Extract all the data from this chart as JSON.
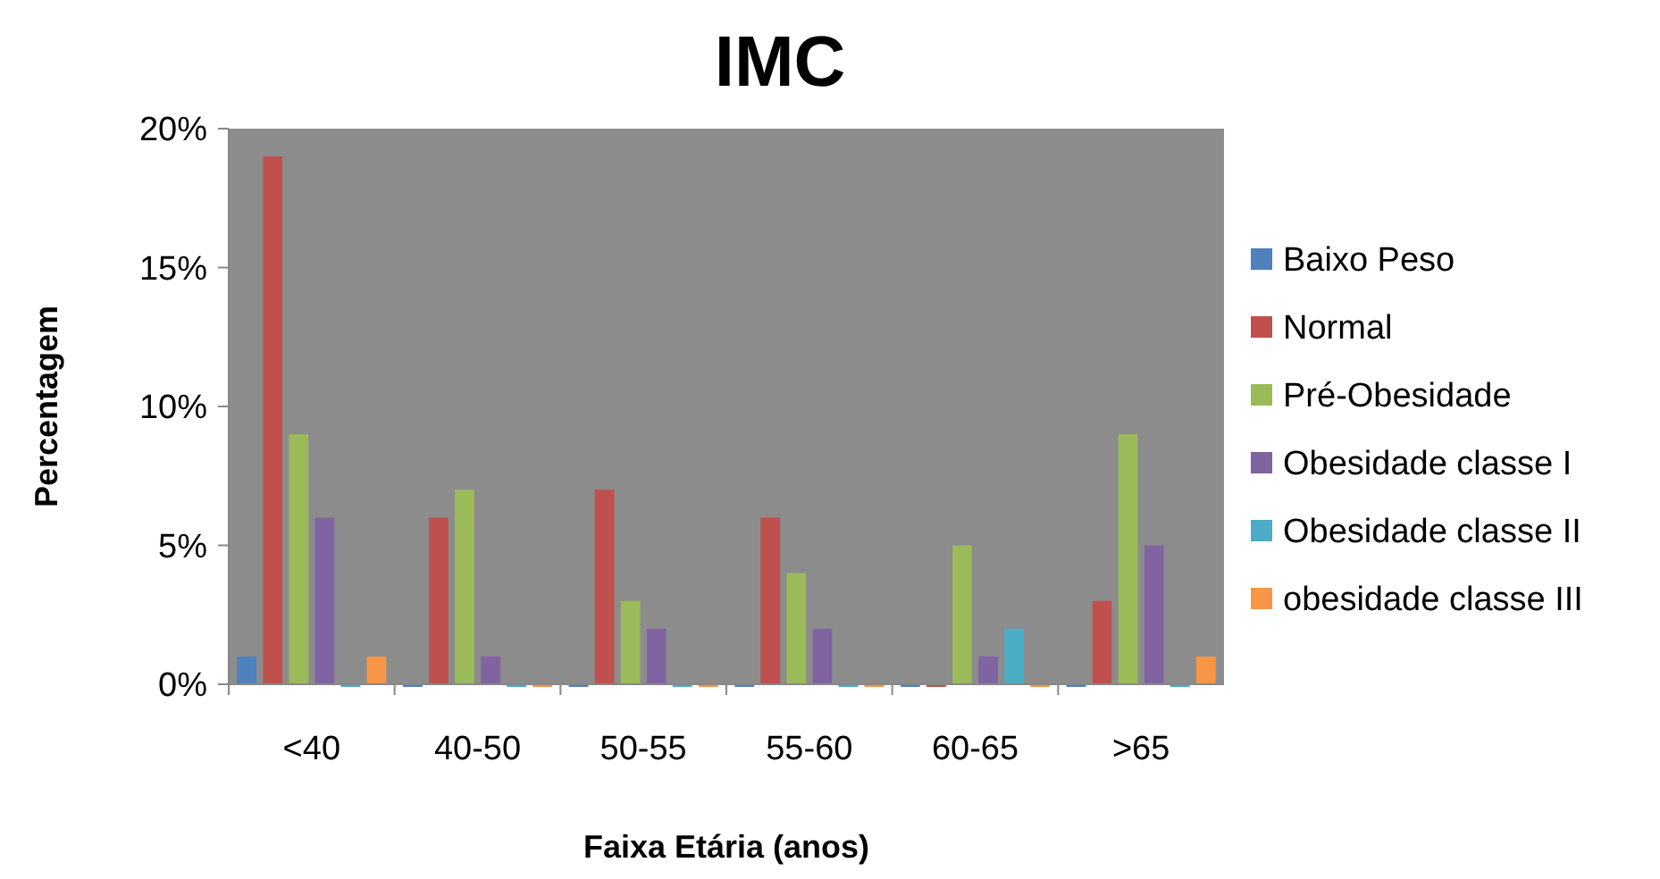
{
  "chart_data": {
    "type": "bar",
    "title": "IMC",
    "xlabel": "Faixa Etária (anos)",
    "ylabel": "Percentagem",
    "categories": [
      "<40",
      "40-50",
      "50-55",
      "55-60",
      "60-65",
      ">65"
    ],
    "series": [
      {
        "name": "Baixo Peso",
        "color": "#4f81bd",
        "values": [
          1,
          0,
          0,
          0,
          0,
          0
        ]
      },
      {
        "name": "Normal",
        "color": "#c0504d",
        "values": [
          19,
          6,
          7,
          6,
          0,
          3
        ]
      },
      {
        "name": "Pré-Obesidade",
        "color": "#9bbb59",
        "values": [
          9,
          7,
          3,
          4,
          5,
          9
        ]
      },
      {
        "name": "Obesidade classe I",
        "color": "#8064a2",
        "values": [
          6,
          1,
          2,
          2,
          1,
          5
        ]
      },
      {
        "name": "Obesidade classe II",
        "color": "#4bacc6",
        "values": [
          0,
          0,
          0,
          0,
          2,
          0
        ]
      },
      {
        "name": "obesidade classe III",
        "color": "#f79646",
        "values": [
          1,
          0,
          0,
          0,
          0,
          1
        ]
      }
    ],
    "ylim": [
      0,
      20
    ],
    "yticks": [
      {
        "value": 0,
        "label": "0%"
      },
      {
        "value": 5,
        "label": "5%"
      },
      {
        "value": 10,
        "label": "10%"
      },
      {
        "value": 15,
        "label": "15%"
      },
      {
        "value": 20,
        "label": "20%"
      }
    ],
    "grid": false,
    "legend": "right"
  }
}
